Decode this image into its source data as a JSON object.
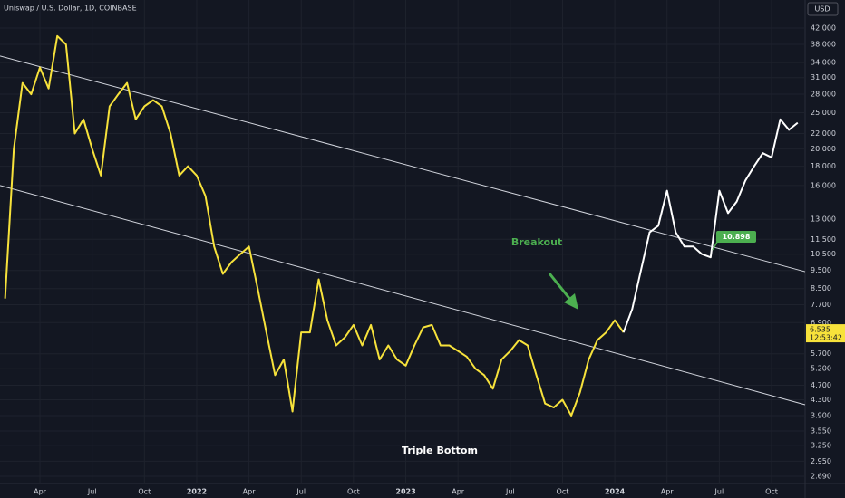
{
  "chart_data": {
    "type": "line",
    "title": "Uniswap / U.S. Dollar, 1D, COINBASE",
    "currency": "USD",
    "log_scale": true,
    "grid": true,
    "categories": [
      null,
      null,
      null,
      null,
      "Apr",
      null,
      null,
      null,
      null,
      null,
      "Jul",
      null,
      null,
      null,
      null,
      null,
      "Oct",
      null,
      null,
      null,
      null,
      null,
      "2022",
      null,
      null,
      null,
      null,
      null,
      "Apr",
      null,
      null,
      null,
      null,
      null,
      "Jul",
      null,
      null,
      null,
      null,
      null,
      "Oct",
      null,
      null,
      null,
      null,
      null,
      "2023",
      null,
      null,
      null,
      null,
      null,
      "Apr",
      null,
      null,
      null,
      null,
      null,
      "Jul",
      null,
      null,
      null,
      null,
      null,
      "Oct",
      null,
      null,
      null,
      null,
      null,
      "2024",
      null,
      null,
      null,
      null,
      null,
      "Apr",
      null,
      null,
      null,
      null,
      null,
      "Jul",
      null,
      null,
      null,
      null,
      null,
      "Oct",
      null,
      null,
      null
    ],
    "series": [
      {
        "color": "#f7e23b",
        "values": [
          8,
          20,
          30,
          28,
          33,
          29,
          40,
          38,
          22,
          24,
          20,
          17,
          26,
          28,
          30,
          24,
          26,
          27,
          26,
          22,
          17,
          18,
          17,
          15,
          11,
          9.3,
          10,
          10.5,
          11,
          8.5,
          6.5,
          5.0,
          5.5,
          4.0,
          6.5,
          6.5,
          9.0,
          7.0,
          6.0,
          6.3,
          6.8,
          6.0,
          6.8,
          5.5,
          6.0,
          5.5,
          5.3,
          6.0,
          6.7,
          6.8,
          6.0,
          6.0,
          5.8,
          5.6,
          5.2,
          5.0,
          4.6,
          5.5,
          5.8,
          6.2,
          6.0,
          5.0,
          4.2,
          4.1,
          4.3,
          3.9,
          4.5,
          5.5,
          6.2,
          6.5,
          7.0,
          6.5,
          null,
          null,
          null,
          null,
          null,
          null,
          null,
          null,
          null,
          null,
          null,
          null,
          null,
          null,
          null,
          null,
          null,
          null,
          null,
          null
        ]
      },
      {
        "color": "#ffffff",
        "values": [
          null,
          null,
          null,
          null,
          null,
          null,
          null,
          null,
          null,
          null,
          null,
          null,
          null,
          null,
          null,
          null,
          null,
          null,
          null,
          null,
          null,
          null,
          null,
          null,
          null,
          null,
          null,
          null,
          null,
          null,
          null,
          null,
          null,
          null,
          null,
          null,
          null,
          null,
          null,
          null,
          null,
          null,
          null,
          null,
          null,
          null,
          null,
          null,
          null,
          null,
          null,
          null,
          null,
          null,
          null,
          null,
          null,
          null,
          null,
          null,
          null,
          null,
          null,
          null,
          null,
          null,
          null,
          null,
          null,
          null,
          null,
          6.5,
          7.5,
          9.5,
          12,
          12.5,
          15.5,
          12,
          11,
          11,
          10.5,
          10.3,
          15.5,
          13.5,
          14.5,
          16.5,
          18,
          19.5,
          19,
          24,
          22.5,
          23.5
        ]
      }
    ],
    "trendlines": [
      {
        "start": 35.4,
        "end": 9.43
      },
      {
        "start": 16,
        "end": 4.17
      }
    ],
    "ylim": [
      2.63,
      49.9
    ],
    "yticks": [
      {
        "value": 42,
        "label": "42.000"
      },
      {
        "value": 38,
        "label": "38.000"
      },
      {
        "value": 34,
        "label": "34.000"
      },
      {
        "value": 31,
        "label": "31.000"
      },
      {
        "value": 28,
        "label": "28.000"
      },
      {
        "value": 25,
        "label": "25.000"
      },
      {
        "value": 22,
        "label": "22.000"
      },
      {
        "value": 20,
        "label": "20.000"
      },
      {
        "value": 18,
        "label": "18.000"
      },
      {
        "value": 16,
        "label": "16.000"
      },
      {
        "value": 13,
        "label": "13.000"
      },
      {
        "value": 11.5,
        "label": "11.500"
      },
      {
        "value": 10.5,
        "label": "10.500"
      },
      {
        "value": 9.5,
        "label": "9.500"
      },
      {
        "value": 8.5,
        "label": "8.500"
      },
      {
        "value": 7.7,
        "label": "7.700"
      },
      {
        "value": 6.9,
        "label": "6.900"
      },
      {
        "value": 5.7,
        "label": "5.700"
      },
      {
        "value": 5.2,
        "label": "5.200"
      },
      {
        "value": 4.7,
        "label": "4.700"
      },
      {
        "value": 4.3,
        "label": "4.300"
      },
      {
        "value": 3.9,
        "label": "3.900"
      },
      {
        "value": 3.55,
        "label": "3.550"
      },
      {
        "value": 3.25,
        "label": "3.250"
      },
      {
        "value": 2.95,
        "label": "2.950"
      },
      {
        "value": 2.69,
        "label": "2.690"
      }
    ],
    "last_price": 6.535,
    "countdown": "12:53:42",
    "breakout_price": 10.898,
    "annotations": [
      "Breakout",
      "Triple Bottom"
    ]
  }
}
